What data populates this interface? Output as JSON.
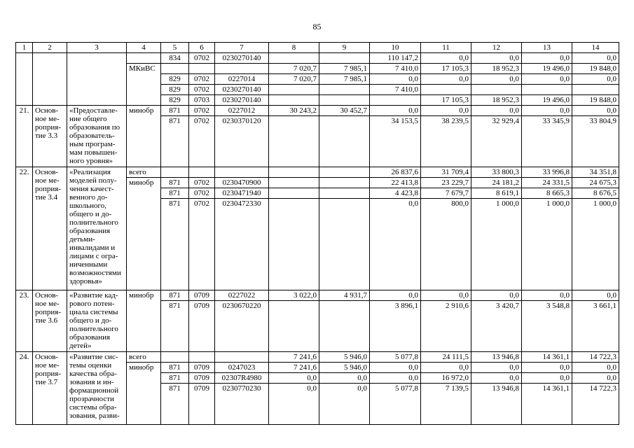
{
  "page": {
    "number": "85"
  },
  "table": {
    "header": [
      "1",
      "2",
      "3",
      "4",
      "5",
      "6",
      "7",
      "8",
      "9",
      "10",
      "11",
      "12",
      "13",
      "14"
    ],
    "rows": [
      {
        "cells": [
          {
            "v": "",
            "col": 1,
            "rs": 5
          },
          {
            "v": "",
            "col": 2,
            "rs": 5
          },
          {
            "v": "",
            "col": 3,
            "rs": 5
          },
          {
            "v": "",
            "col": 4
          },
          {
            "v": "834",
            "col": 5
          },
          {
            "v": "0702",
            "col": 6
          },
          {
            "v": "0230270140",
            "col": 7
          },
          {
            "v": "",
            "col": 8
          },
          {
            "v": "",
            "col": 9
          },
          {
            "v": "110 147,2",
            "col": 10
          },
          {
            "v": "0,0",
            "col": 11
          },
          {
            "v": "0,0",
            "col": 12
          },
          {
            "v": "0,0",
            "col": 13
          },
          {
            "v": "0,0",
            "col": 14
          }
        ]
      },
      {
        "cells": [
          {
            "v": "МКиВС",
            "col": 4,
            "rs": 4
          },
          {
            "v": "",
            "col": 5
          },
          {
            "v": "",
            "col": 6
          },
          {
            "v": "",
            "col": 7
          },
          {
            "v": "7 020,7",
            "col": 8
          },
          {
            "v": "7 985,1",
            "col": 9
          },
          {
            "v": "7 410,0",
            "col": 10
          },
          {
            "v": "17 105,3",
            "col": 11
          },
          {
            "v": "18 952,3",
            "col": 12
          },
          {
            "v": "19 496,0",
            "col": 13
          },
          {
            "v": "19 848,0",
            "col": 14
          }
        ]
      },
      {
        "cells": [
          {
            "v": "829",
            "col": 5
          },
          {
            "v": "0702",
            "col": 6
          },
          {
            "v": "0227014",
            "col": 7
          },
          {
            "v": "7 020,7",
            "col": 8
          },
          {
            "v": "7 985,1",
            "col": 9
          },
          {
            "v": "0,0",
            "col": 10
          },
          {
            "v": "0,0",
            "col": 11
          },
          {
            "v": "0,0",
            "col": 12
          },
          {
            "v": "0,0",
            "col": 13
          },
          {
            "v": "0,0",
            "col": 14
          }
        ]
      },
      {
        "cells": [
          {
            "v": "829",
            "col": 5
          },
          {
            "v": "0702",
            "col": 6
          },
          {
            "v": "0230270140",
            "col": 7
          },
          {
            "v": "",
            "col": 8
          },
          {
            "v": "",
            "col": 9
          },
          {
            "v": "7 410,0",
            "col": 10
          },
          {
            "v": "",
            "col": 11
          },
          {
            "v": "",
            "col": 12
          },
          {
            "v": "",
            "col": 13
          },
          {
            "v": "",
            "col": 14
          }
        ]
      },
      {
        "cells": [
          {
            "v": "829",
            "col": 5
          },
          {
            "v": "0703",
            "col": 6
          },
          {
            "v": "0230270140",
            "col": 7
          },
          {
            "v": "",
            "col": 8
          },
          {
            "v": "",
            "col": 9
          },
          {
            "v": "",
            "col": 10
          },
          {
            "v": "17 105,3",
            "col": 11
          },
          {
            "v": "18 952,3",
            "col": 12
          },
          {
            "v": "19 496,0",
            "col": 13
          },
          {
            "v": "19 848,0",
            "col": 14
          }
        ]
      },
      {
        "cells": [
          {
            "v": "21.",
            "col": 1,
            "rs": 2
          },
          {
            "v": "Основ-\nное ме-\nроприя-\nтие 3.3",
            "col": 2,
            "rs": 2
          },
          {
            "v": "«Предоставле-\nние общего\nобразования по\nобразователь-\nным програм-\nмам повышен-\nного уровня»",
            "col": 3,
            "rs": 2
          },
          {
            "v": "минобр",
            "col": 4,
            "rs": 2
          },
          {
            "v": "871",
            "col": 5
          },
          {
            "v": "0702",
            "col": 6
          },
          {
            "v": "0227012",
            "col": 7
          },
          {
            "v": "30 243,2",
            "col": 8
          },
          {
            "v": "30 452,7",
            "col": 9
          },
          {
            "v": "0,0",
            "col": 10
          },
          {
            "v": "0,0",
            "col": 11
          },
          {
            "v": "0,0",
            "col": 12
          },
          {
            "v": "0,0",
            "col": 13
          },
          {
            "v": "0,0",
            "col": 14
          }
        ]
      },
      {
        "cells": [
          {
            "v": "871",
            "col": 5
          },
          {
            "v": "0702",
            "col": 6
          },
          {
            "v": "0230370120",
            "col": 7
          },
          {
            "v": "",
            "col": 8
          },
          {
            "v": "",
            "col": 9
          },
          {
            "v": "34 153,5",
            "col": 10
          },
          {
            "v": "38 239,5",
            "col": 11
          },
          {
            "v": "32 929,4",
            "col": 12
          },
          {
            "v": "33 345,9",
            "col": 13
          },
          {
            "v": "33 804,9",
            "col": 14
          }
        ]
      },
      {
        "cells": [
          {
            "v": "22.",
            "col": 1,
            "rs": 4
          },
          {
            "v": "Основ-\nное ме-\nроприя-\nтие 3.4",
            "col": 2,
            "rs": 4
          },
          {
            "v": "«Реализация\nмоделей полу-\nчения качест-\nвенного до-\nшкольного,\nобщего и до-\nполнительного\nобразования\nдетьми-\nинвалидами и\nлицами с огра-\nниченными\nвозможностями\nздоровья»",
            "col": 3,
            "rs": 4
          },
          {
            "v": "всего",
            "col": 4
          },
          {
            "v": "",
            "col": 5
          },
          {
            "v": "",
            "col": 6
          },
          {
            "v": "",
            "col": 7
          },
          {
            "v": "",
            "col": 8
          },
          {
            "v": "",
            "col": 9
          },
          {
            "v": "26 837,6",
            "col": 10
          },
          {
            "v": "31 709,4",
            "col": 11
          },
          {
            "v": "33 800,3",
            "col": 12
          },
          {
            "v": "33 996,8",
            "col": 13
          },
          {
            "v": "34 351,8",
            "col": 14
          }
        ]
      },
      {
        "cells": [
          {
            "v": "минобр",
            "col": 4,
            "rs": 3
          },
          {
            "v": "871",
            "col": 5
          },
          {
            "v": "0702",
            "col": 6
          },
          {
            "v": "0230470900",
            "col": 7
          },
          {
            "v": "",
            "col": 8
          },
          {
            "v": "",
            "col": 9
          },
          {
            "v": "22 413,8",
            "col": 10
          },
          {
            "v": "23 229,7",
            "col": 11
          },
          {
            "v": "24 181,2",
            "col": 12
          },
          {
            "v": "24 331,5",
            "col": 13
          },
          {
            "v": "24 675,3",
            "col": 14
          }
        ]
      },
      {
        "cells": [
          {
            "v": "871",
            "col": 5
          },
          {
            "v": "0702",
            "col": 6
          },
          {
            "v": "0230471940",
            "col": 7
          },
          {
            "v": "",
            "col": 8
          },
          {
            "v": "",
            "col": 9
          },
          {
            "v": "4 423,8",
            "col": 10
          },
          {
            "v": "7 679,7",
            "col": 11
          },
          {
            "v": "8 619,1",
            "col": 12
          },
          {
            "v": "8 665,3",
            "col": 13
          },
          {
            "v": "8 676,5",
            "col": 14
          }
        ]
      },
      {
        "cells": [
          {
            "v": "871",
            "col": 5
          },
          {
            "v": "0702",
            "col": 6
          },
          {
            "v": "0230472330",
            "col": 7
          },
          {
            "v": "",
            "col": 8
          },
          {
            "v": "",
            "col": 9
          },
          {
            "v": "0,0",
            "col": 10
          },
          {
            "v": "800,0",
            "col": 11
          },
          {
            "v": "1 000,0",
            "col": 12
          },
          {
            "v": "1 000,0",
            "col": 13
          },
          {
            "v": "1 000,0",
            "col": 14
          }
        ]
      },
      {
        "cells": [
          {
            "v": "23.",
            "col": 1,
            "rs": 2
          },
          {
            "v": "Основ-\nное ме-\nроприя-\nтие 3.6",
            "col": 2,
            "rs": 2
          },
          {
            "v": "«Развитие кад-\nрового потен-\nциала системы\nобщего и до-\nполнительного\nобразования\nдетей»",
            "col": 3,
            "rs": 2
          },
          {
            "v": "минобр",
            "col": 4,
            "rs": 2
          },
          {
            "v": "871",
            "col": 5
          },
          {
            "v": "0709",
            "col": 6
          },
          {
            "v": "0227022",
            "col": 7
          },
          {
            "v": "3 022,0",
            "col": 8
          },
          {
            "v": "4 931,7",
            "col": 9
          },
          {
            "v": "0,0",
            "col": 10
          },
          {
            "v": "0,0",
            "col": 11
          },
          {
            "v": "0,0",
            "col": 12
          },
          {
            "v": "0,0",
            "col": 13
          },
          {
            "v": "0,0",
            "col": 14
          }
        ]
      },
      {
        "cells": [
          {
            "v": "871",
            "col": 5
          },
          {
            "v": "0709",
            "col": 6
          },
          {
            "v": "0230670220",
            "col": 7
          },
          {
            "v": "",
            "col": 8
          },
          {
            "v": "",
            "col": 9
          },
          {
            "v": "3 896,1",
            "col": 10
          },
          {
            "v": "2 910,6",
            "col": 11
          },
          {
            "v": "3 420,7",
            "col": 12
          },
          {
            "v": "3 548,8",
            "col": 13
          },
          {
            "v": "3 661,1",
            "col": 14
          }
        ]
      },
      {
        "cells": [
          {
            "v": "24.",
            "col": 1,
            "rs": 4
          },
          {
            "v": "Основ-\nное ме-\nроприя-\nтие 3.7",
            "col": 2,
            "rs": 4
          },
          {
            "v": "«Развитие сис-\nтемы оценки\nкачества обра-\nзования и ин-\nформационной\nпрозрачности\nсистемы обра-\nзования, разви-",
            "col": 3,
            "rs": 4
          },
          {
            "v": "всего",
            "col": 4
          },
          {
            "v": "",
            "col": 5
          },
          {
            "v": "",
            "col": 6
          },
          {
            "v": "",
            "col": 7
          },
          {
            "v": "7 241,6",
            "col": 8
          },
          {
            "v": "5 946,0",
            "col": 9
          },
          {
            "v": "5 077,8",
            "col": 10
          },
          {
            "v": "24 111,5",
            "col": 11
          },
          {
            "v": "13 946,8",
            "col": 12
          },
          {
            "v": "14 361,1",
            "col": 13
          },
          {
            "v": "14 722,3",
            "col": 14
          }
        ]
      },
      {
        "cells": [
          {
            "v": "минобр",
            "col": 4,
            "rs": 3
          },
          {
            "v": "871",
            "col": 5
          },
          {
            "v": "0709",
            "col": 6
          },
          {
            "v": "0247023",
            "col": 7
          },
          {
            "v": "7 241,6",
            "col": 8
          },
          {
            "v": "5 946,0",
            "col": 9
          },
          {
            "v": "0,0",
            "col": 10
          },
          {
            "v": "0,0",
            "col": 11
          },
          {
            "v": "0,0",
            "col": 12
          },
          {
            "v": "0,0",
            "col": 13
          },
          {
            "v": "0,0",
            "col": 14
          }
        ]
      },
      {
        "cells": [
          {
            "v": "871",
            "col": 5
          },
          {
            "v": "0709",
            "col": 6
          },
          {
            "v": "02307R4980",
            "col": 7
          },
          {
            "v": "0,0",
            "col": 8
          },
          {
            "v": "0,0",
            "col": 9
          },
          {
            "v": "0,0",
            "col": 10
          },
          {
            "v": "16 972,0",
            "col": 11
          },
          {
            "v": "0,0",
            "col": 12
          },
          {
            "v": "0,0",
            "col": 13
          },
          {
            "v": "0,0",
            "col": 14
          }
        ]
      },
      {
        "cells": [
          {
            "v": "871",
            "col": 5
          },
          {
            "v": "0709",
            "col": 6
          },
          {
            "v": "0230770230",
            "col": 7
          },
          {
            "v": "0,0",
            "col": 8
          },
          {
            "v": "0,0",
            "col": 9
          },
          {
            "v": "5 077,8",
            "col": 10
          },
          {
            "v": "7 139,5",
            "col": 11
          },
          {
            "v": "13 946,8",
            "col": 12
          },
          {
            "v": "14 361,1",
            "col": 13
          },
          {
            "v": "14 722,3",
            "col": 14
          }
        ]
      }
    ]
  }
}
